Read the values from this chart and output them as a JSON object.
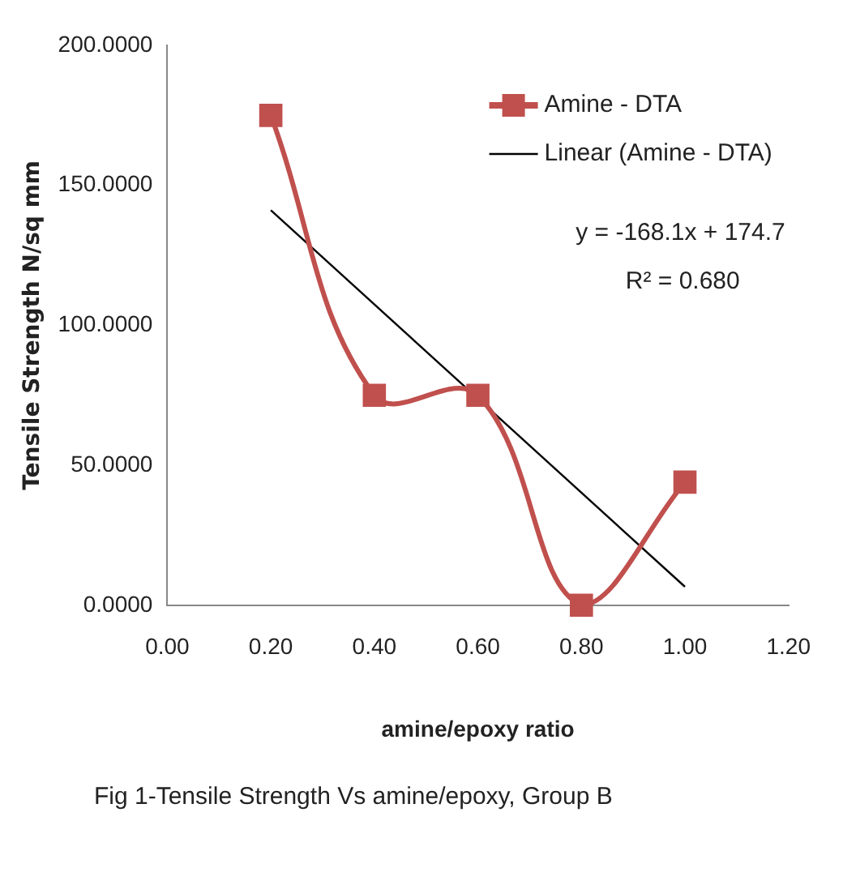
{
  "chart_data": {
    "type": "line",
    "xlabel": "amine/epoxy ratio",
    "ylabel": "Tensile Strength N/sq mm",
    "x": [
      0.2,
      0.4,
      0.6,
      0.8,
      1.0
    ],
    "series": [
      {
        "name": "Amine - DTA",
        "color": "#c0504d",
        "values": [
          175,
          75,
          75,
          0,
          44
        ],
        "marker": "square"
      },
      {
        "name": "Linear (Amine - DTA)",
        "type": "line",
        "color": "#000000",
        "x": [
          0.2,
          1.0
        ],
        "values": [
          141.1,
          6.6
        ],
        "marker": "none"
      }
    ],
    "xlim": [
      0,
      1.2
    ],
    "xticks": [
      {
        "value": 0,
        "label": "0.00"
      },
      {
        "value": 0.2,
        "label": "0.20"
      },
      {
        "value": 0.4,
        "label": "0.40"
      },
      {
        "value": 0.6,
        "label": "0.60"
      },
      {
        "value": 0.8,
        "label": "0.80"
      },
      {
        "value": 1.0,
        "label": "1.00"
      },
      {
        "value": 1.2,
        "label": "1.20"
      }
    ],
    "ylim": [
      0,
      200
    ],
    "yticks": [
      {
        "value": 0,
        "label": "0.0000"
      },
      {
        "value": 50,
        "label": "50.0000"
      },
      {
        "value": 100,
        "label": "100.0000"
      },
      {
        "value": 150,
        "label": "150.0000"
      },
      {
        "value": 200,
        "label": "200.0000"
      }
    ],
    "grid": false,
    "legend": "top right",
    "line_style": "solid",
    "annotations": [
      "y = -168.1x + 174.7",
      "R² = 0.680",
      "Fig 1-Tensile Strength Vs amine/epoxy, Group B"
    ]
  }
}
